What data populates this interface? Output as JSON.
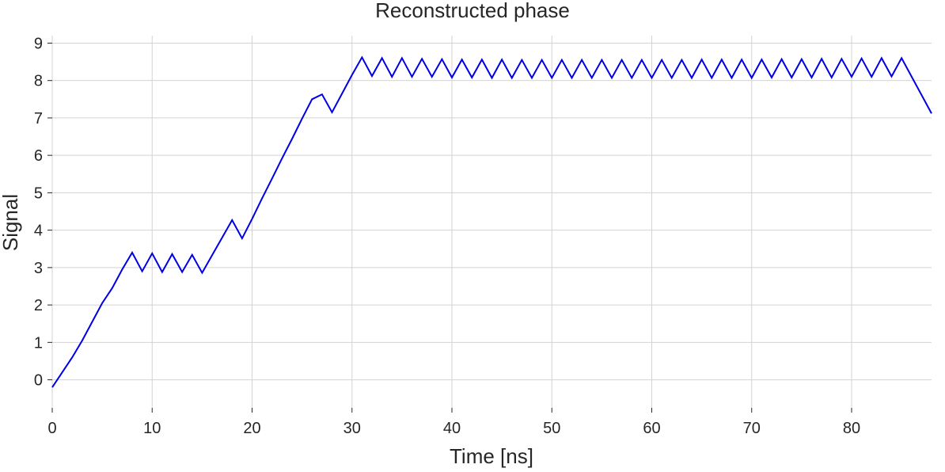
{
  "chart_data": {
    "type": "line",
    "title": "Reconstructed phase",
    "xlabel": "Time [ns]",
    "ylabel": "Signal",
    "xlim": [
      0,
      88
    ],
    "ylim": [
      -0.75,
      9.2
    ],
    "xticks": [
      0,
      10,
      20,
      30,
      40,
      50,
      60,
      70,
      80
    ],
    "yticks": [
      0,
      1,
      2,
      3,
      4,
      5,
      6,
      7,
      8,
      9
    ],
    "grid": true,
    "legend": "none",
    "series": [
      {
        "color": "#0000e6",
        "x": [
          0,
          2,
          3,
          4,
          5,
          6,
          7,
          8,
          9,
          10,
          11,
          12,
          13,
          14,
          15,
          16,
          17,
          18,
          19,
          20,
          21,
          22,
          23,
          24,
          25,
          26,
          27,
          28,
          29,
          30,
          31,
          32,
          33,
          34,
          35,
          36,
          37,
          38,
          39,
          40,
          41,
          42,
          43,
          44,
          45,
          46,
          47,
          48,
          49,
          50,
          51,
          52,
          53,
          54,
          55,
          56,
          57,
          58,
          59,
          60,
          61,
          62,
          63,
          64,
          65,
          66,
          67,
          68,
          69,
          70,
          71,
          72,
          73,
          74,
          75,
          76,
          77,
          78,
          79,
          80,
          81,
          82,
          83,
          84,
          85,
          88
        ],
        "y": [
          -0.2,
          0.6,
          1.05,
          1.55,
          2.05,
          2.45,
          2.95,
          3.4,
          2.9,
          3.38,
          2.88,
          3.36,
          2.88,
          3.34,
          2.86,
          3.33,
          3.8,
          4.27,
          3.78,
          4.3,
          4.85,
          5.38,
          5.92,
          6.44,
          6.98,
          7.5,
          7.63,
          7.15,
          7.65,
          8.15,
          8.62,
          8.12,
          8.6,
          8.1,
          8.6,
          8.1,
          8.58,
          8.1,
          8.57,
          8.08,
          8.56,
          8.08,
          8.56,
          8.07,
          8.56,
          8.07,
          8.55,
          8.07,
          8.55,
          8.07,
          8.55,
          8.07,
          8.55,
          8.07,
          8.55,
          8.07,
          8.55,
          8.07,
          8.55,
          8.07,
          8.55,
          8.07,
          8.55,
          8.07,
          8.56,
          8.07,
          8.56,
          8.07,
          8.56,
          8.07,
          8.56,
          8.08,
          8.57,
          8.08,
          8.57,
          8.08,
          8.58,
          8.08,
          8.58,
          8.1,
          8.59,
          8.1,
          8.6,
          8.11,
          8.6,
          7.12
        ]
      }
    ]
  }
}
